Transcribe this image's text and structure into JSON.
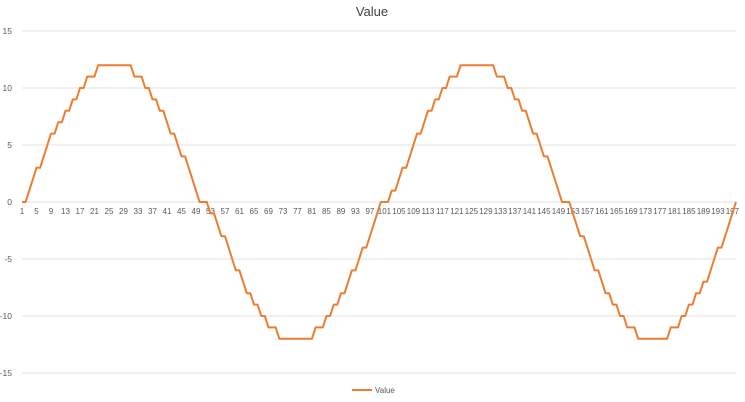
{
  "chart_data": {
    "type": "line",
    "title": "Value",
    "xlabel": "",
    "ylabel": "",
    "ylim": [
      -15,
      15
    ],
    "yticks": [
      15,
      10,
      5,
      0,
      -5,
      -10,
      -15
    ],
    "grid": "horizontal",
    "legend": "bottom",
    "line_color": "#ED7D31",
    "grid_color": "#D9D9D9",
    "series": [
      {
        "name": "Value",
        "values": [
          0,
          0,
          1,
          2,
          3,
          3,
          4,
          5,
          6,
          6,
          7,
          7,
          8,
          8,
          9,
          9,
          10,
          10,
          11,
          11,
          11,
          12,
          12,
          12,
          12,
          12,
          12,
          12,
          12,
          12,
          12,
          11,
          11,
          11,
          10,
          10,
          9,
          9,
          8,
          8,
          7,
          6,
          6,
          5,
          4,
          4,
          3,
          2,
          1,
          0,
          0,
          0,
          -1,
          -1,
          -2,
          -3,
          -3,
          -4,
          -5,
          -6,
          -6,
          -7,
          -8,
          -8,
          -9,
          -9,
          -10,
          -10,
          -11,
          -11,
          -11,
          -12,
          -12,
          -12,
          -12,
          -12,
          -12,
          -12,
          -12,
          -12,
          -12,
          -11,
          -11,
          -11,
          -10,
          -10,
          -9,
          -9,
          -8,
          -8,
          -7,
          -6,
          -6,
          -5,
          -4,
          -4,
          -3,
          -2,
          -1,
          0,
          0,
          0,
          1,
          1,
          2,
          3,
          3,
          4,
          5,
          6,
          6,
          7,
          8,
          8,
          9,
          9,
          10,
          10,
          11,
          11,
          11,
          12,
          12,
          12,
          12,
          12,
          12,
          12,
          12,
          12,
          12,
          11,
          11,
          11,
          10,
          10,
          9,
          9,
          8,
          8,
          7,
          6,
          6,
          5,
          4,
          4,
          3,
          2,
          1,
          0,
          0,
          0,
          -1,
          -2,
          -3,
          -3,
          -4,
          -5,
          -6,
          -6,
          -7,
          -8,
          -8,
          -9,
          -9,
          -10,
          -10,
          -11,
          -11,
          -11,
          -12,
          -12,
          -12,
          -12,
          -12,
          -12,
          -12,
          -12,
          -12,
          -11,
          -11,
          -11,
          -10,
          -10,
          -9,
          -9,
          -8,
          -8,
          -7,
          -7,
          -6,
          -5,
          -4,
          -4,
          -3,
          -2,
          -1,
          0
        ]
      }
    ]
  }
}
